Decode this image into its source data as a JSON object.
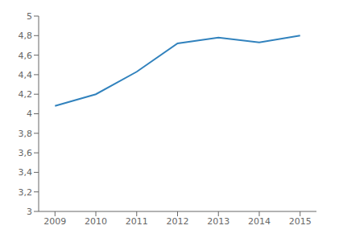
{
  "chart_data": {
    "type": "line",
    "x": [
      2009,
      2010,
      2011,
      2012,
      2013,
      2014,
      2015
    ],
    "values": [
      4.08,
      4.2,
      4.43,
      4.72,
      4.78,
      4.73,
      4.8
    ],
    "xlim": [
      2008.6,
      2015.4
    ],
    "xticks": [
      2009,
      2010,
      2011,
      2012,
      2013,
      2014,
      2015
    ],
    "ylim": [
      3.0,
      5.0
    ],
    "yticks": [
      3,
      {
        "value": 3.2,
        "label": "3,2"
      },
      {
        "value": 3.4,
        "label": "3,4"
      },
      {
        "value": 3.6,
        "label": "3,6"
      },
      {
        "value": 3.8,
        "label": "3,8"
      },
      4,
      {
        "value": 4.2,
        "label": "4,2"
      },
      {
        "value": 4.4,
        "label": "4,4"
      },
      {
        "value": 4.6,
        "label": "4,6"
      },
      {
        "value": 4.8,
        "label": "4,8"
      },
      5
    ]
  }
}
